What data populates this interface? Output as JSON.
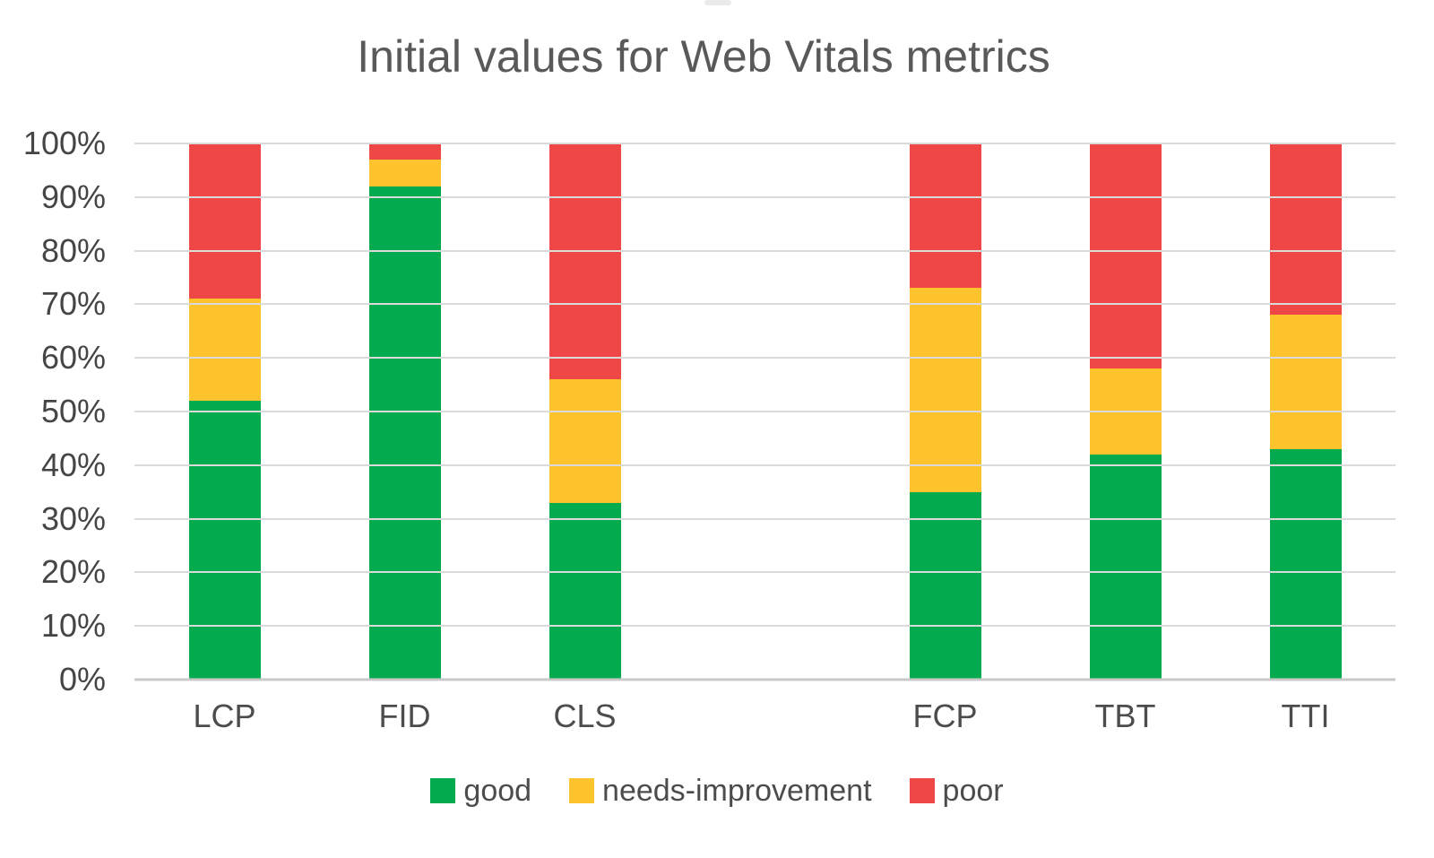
{
  "title": "Initial values for Web Vitals metrics",
  "colors": {
    "good": "#04AB4E",
    "needs_improvement": "#FEC32D",
    "poor": "#EE4746",
    "gridline": "#DADADA",
    "baseline": "#C9C9C9",
    "title_text": "#595959",
    "axis_text": "#454545"
  },
  "y_axis": {
    "tick_labels": [
      "100%",
      "90%",
      "80%",
      "70%",
      "60%",
      "50%",
      "40%",
      "30%",
      "20%",
      "10%",
      "0%"
    ],
    "min": 0,
    "max": 100,
    "step": 10
  },
  "legend": [
    {
      "label": "good",
      "color": "#04AB4E"
    },
    {
      "label": "needs-improvement",
      "color": "#FEC32D"
    },
    {
      "label": "poor",
      "color": "#EE4746"
    }
  ],
  "chart_data": {
    "type": "bar",
    "stacked": true,
    "title": "Initial values for Web Vitals metrics",
    "xlabel": "",
    "ylabel": "",
    "ylim": [
      0,
      100
    ],
    "grid": true,
    "legend_position": "bottom",
    "categories": [
      "LCP",
      "FID",
      "CLS",
      "",
      "FCP",
      "TBT",
      "TTI"
    ],
    "series": [
      {
        "name": "good",
        "color": "#04AB4E",
        "values": [
          52,
          92,
          33,
          null,
          35,
          42,
          43
        ]
      },
      {
        "name": "needs-improvement",
        "color": "#FEC32D",
        "values": [
          19,
          5,
          23,
          null,
          38,
          16,
          25
        ]
      },
      {
        "name": "poor",
        "color": "#EE4746",
        "values": [
          29,
          3,
          44,
          null,
          27,
          42,
          32
        ]
      }
    ]
  }
}
